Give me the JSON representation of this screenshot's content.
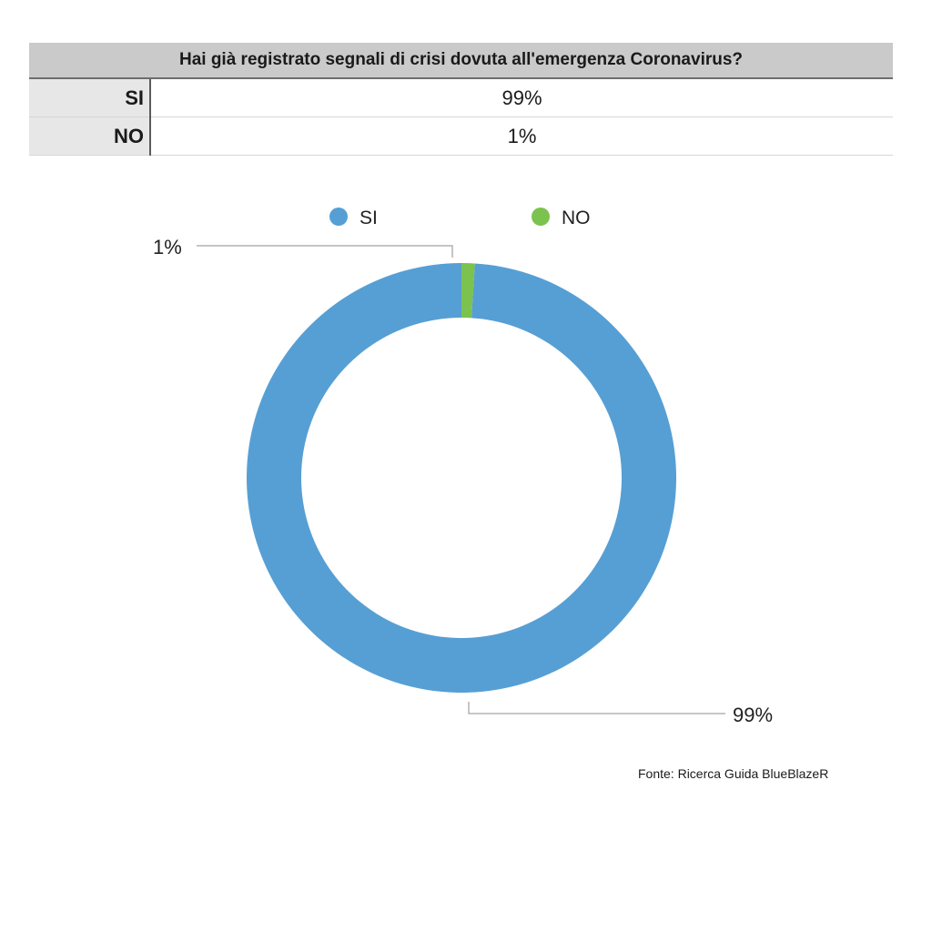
{
  "table": {
    "question": "Hai già registrato segnali di crisi dovuta all'emergenza Coronavirus?",
    "rows": [
      {
        "label": "SI",
        "value": "99%"
      },
      {
        "label": "NO",
        "value": "1%"
      }
    ]
  },
  "chart_data": {
    "type": "pie",
    "style": "donut",
    "categories": [
      "SI",
      "NO"
    ],
    "values": [
      99,
      1
    ],
    "data_labels": [
      "99%",
      "1%"
    ],
    "colors": [
      "#569fd4",
      "#7bc24f"
    ],
    "legend": {
      "placement": "top",
      "entries": [
        "SI",
        "NO"
      ]
    }
  },
  "source": "Fonte: Ricerca Guida BlueBlazeR"
}
